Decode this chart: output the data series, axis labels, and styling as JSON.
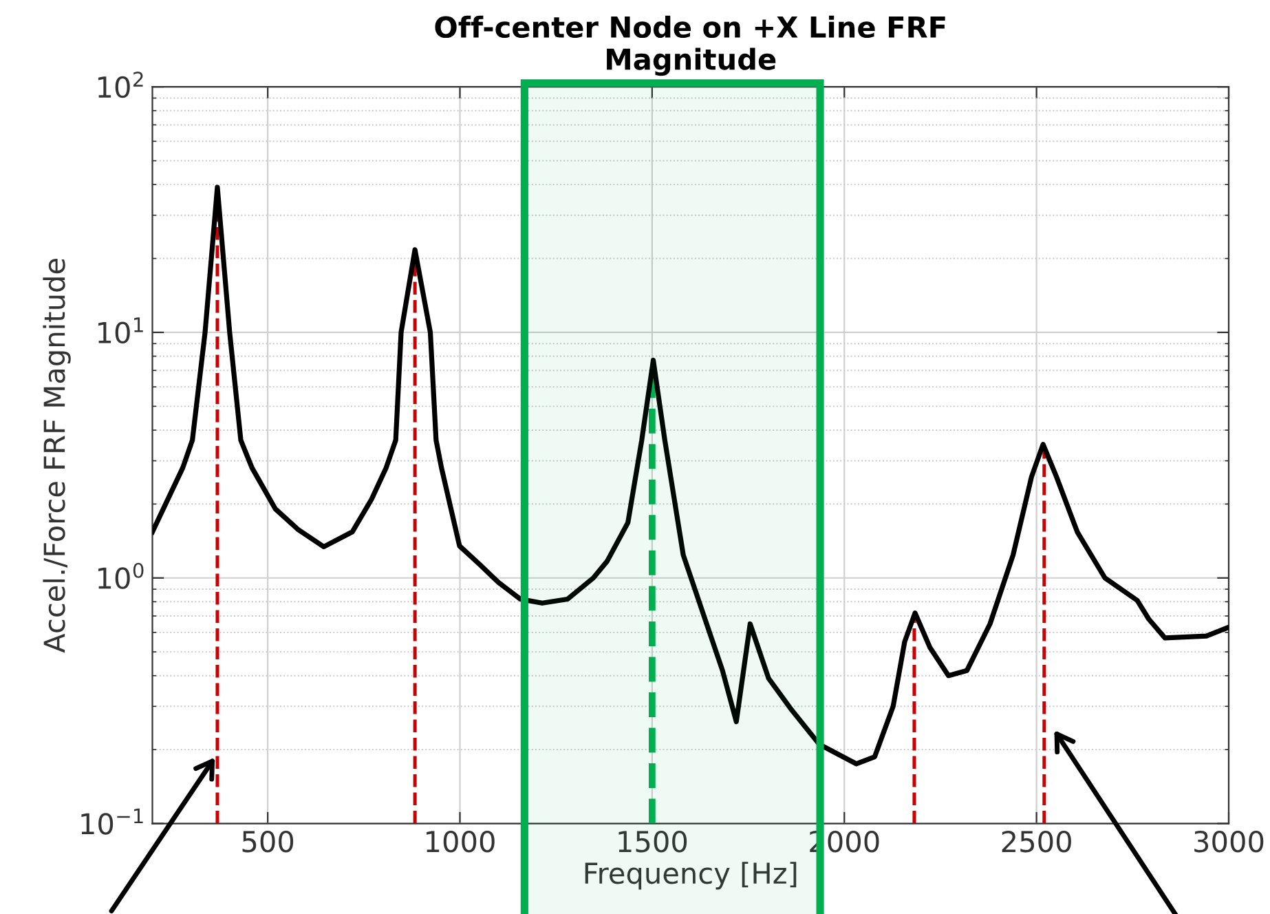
{
  "chart_data": {
    "type": "line",
    "title": "Off-center Node on +X Line FRF\nMagnitude",
    "xlabel": "Frequency [Hz]",
    "ylabel": "Accel./Force FRF Magnitude",
    "log": "y",
    "grid": true,
    "line_style": "solid",
    "xlim": [
      200,
      3000
    ],
    "xticks": [
      500,
      1000,
      1500,
      2000,
      2500,
      3000
    ],
    "ylim": [
      0.1,
      100
    ],
    "yticks": [
      {
        "value": 0.1,
        "label": "10$^{−1}$"
      },
      {
        "value": 1,
        "label": "10$^{0}$"
      },
      {
        "value": 10,
        "label": "10$^{1}$"
      },
      {
        "value": 100,
        "label": "10$^{2}$"
      }
    ],
    "series": [
      {
        "color": "#000000",
        "x": [
          200,
          279,
          304,
          337,
          369,
          401,
          430,
          459,
          520,
          580,
          646,
          720,
          770,
          808,
          833,
          847,
          883,
          923,
          938,
          952,
          999,
          1050,
          1100,
          1157,
          1214,
          1280,
          1347,
          1383,
          1437,
          1473,
          1503,
          1533,
          1581,
          1683,
          1719,
          1755,
          1803,
          1863,
          1935,
          2031,
          2079,
          2127,
          2157,
          2184,
          2223,
          2271,
          2319,
          2379,
          2439,
          2487,
          2517,
          2552,
          2606,
          2678,
          2762,
          2792,
          2834,
          2942,
          3000
        ],
        "values": [
          1.54,
          2.81,
          3.64,
          10,
          39,
          10,
          3.64,
          2.81,
          1.91,
          1.57,
          1.34,
          1.54,
          2.09,
          2.81,
          3.64,
          10,
          21.7,
          10,
          3.64,
          2.81,
          1.35,
          1.14,
          0.96,
          0.82,
          0.79,
          0.82,
          1.0,
          1.17,
          1.68,
          3.64,
          7.7,
          3.64,
          1.24,
          0.42,
          0.26,
          0.65,
          0.39,
          0.29,
          0.21,
          0.175,
          0.187,
          0.3,
          0.55,
          0.72,
          0.52,
          0.4,
          0.42,
          0.65,
          1.24,
          2.58,
          3.5,
          2.58,
          1.54,
          1.0,
          0.81,
          0.68,
          0.57,
          0.58,
          0.63
        ]
      }
    ],
    "ref_lines": [
      {
        "axis": "x",
        "value": 369,
        "color": "#cc0000",
        "line_style": "dashed"
      },
      {
        "axis": "x",
        "value": 883,
        "color": "#cc0000",
        "line_style": "dashed"
      },
      {
        "axis": "x",
        "value": 1500,
        "color": "#00b050",
        "line_style": "dashed"
      },
      {
        "axis": "x",
        "value": 2182,
        "color": "#cc0000",
        "line_style": "dashed"
      },
      {
        "axis": "x",
        "value": 2520,
        "color": "#cc0000",
        "line_style": "dashed"
      }
    ],
    "bands": [
      {
        "axis": "x",
        "from": 1168,
        "to": 1937,
        "color": "#00b050"
      }
    ]
  }
}
